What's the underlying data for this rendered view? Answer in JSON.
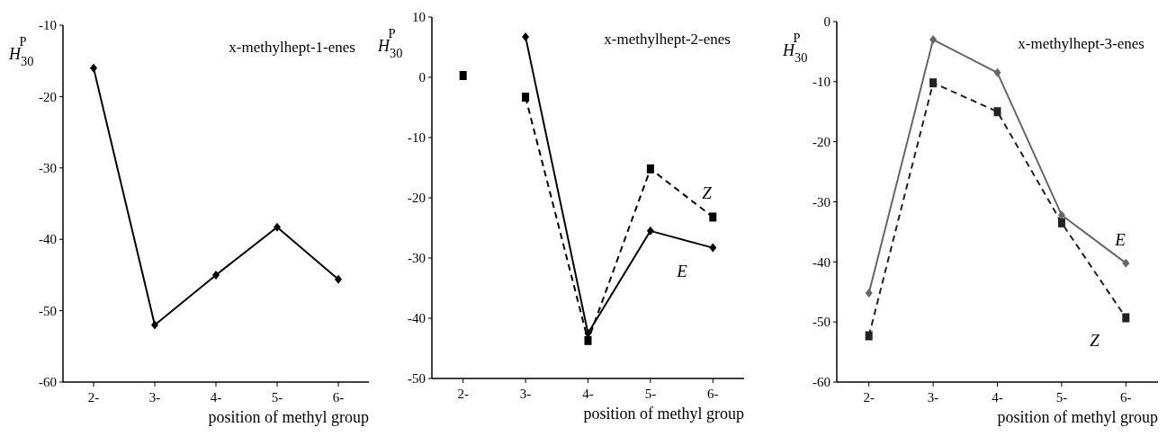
{
  "chart_data": [
    {
      "type": "line",
      "title": "x-methylhept-1-enes",
      "xlabel": "position of methyl group",
      "ylabel": "H$_{30}$$^{P}$",
      "categories": [
        "2-",
        "3-",
        "4-",
        "5-",
        "6-"
      ],
      "ylim": [
        -60,
        -10
      ],
      "yticks": [
        -60,
        -50,
        -40,
        -30,
        -20,
        -10
      ],
      "marker": "diamond",
      "line_style": "solid",
      "series": [
        {
          "color": "#000000",
          "values": [
            -16,
            -52,
            -45,
            -38.3,
            -45.6
          ]
        }
      ]
    },
    {
      "type": "line",
      "title": "x-methylhept-2-enes",
      "xlabel": "position of methyl group",
      "ylabel": "H$_{30}$$^{P}$",
      "categories": [
        "2-",
        "3-",
        "4-",
        "5-",
        "6-"
      ],
      "ylim": [
        -50,
        10
      ],
      "yticks": [
        -50,
        -40,
        -30,
        -20,
        -10,
        0,
        10
      ],
      "series": [
        {
          "name": "E",
          "type": "line",
          "color": "#000000",
          "marker": "diamond",
          "line_style": "solid",
          "values": [
            null,
            6.7,
            -42.5,
            -25.5,
            -28.3
          ]
        },
        {
          "name": "Z",
          "type": "line",
          "color": "#000000",
          "marker": "square",
          "line_style": "dashed",
          "values": [
            null,
            -3.3,
            -43.7,
            -15.2,
            -23.2
          ]
        },
        {
          "type": "scatter",
          "color": "#000000",
          "marker": "square",
          "values": [
            0.3,
            null,
            null,
            null,
            null
          ]
        }
      ]
    },
    {
      "type": "line",
      "title": "x-methylhept-3-enes",
      "xlabel": "position of methyl group",
      "ylabel": "H$_{30}$$^{P}$",
      "categories": [
        "2-",
        "3-",
        "4-",
        "5-",
        "6-"
      ],
      "ylim": [
        -60,
        0
      ],
      "yticks": [
        -60,
        -50,
        -40,
        -30,
        -20,
        -10,
        0
      ],
      "series": [
        {
          "name": "E",
          "type": "line",
          "color": "#666666",
          "marker": "diamond",
          "line_style": "solid",
          "values": [
            -45.2,
            -3,
            -8.5,
            -32.2,
            -40.2
          ]
        },
        {
          "name": "Z",
          "type": "line",
          "color": "#222222",
          "marker": "square",
          "line_style": "dashed",
          "values": [
            -52.3,
            -10.2,
            -15,
            -33.5,
            -49.3
          ]
        }
      ]
    }
  ]
}
